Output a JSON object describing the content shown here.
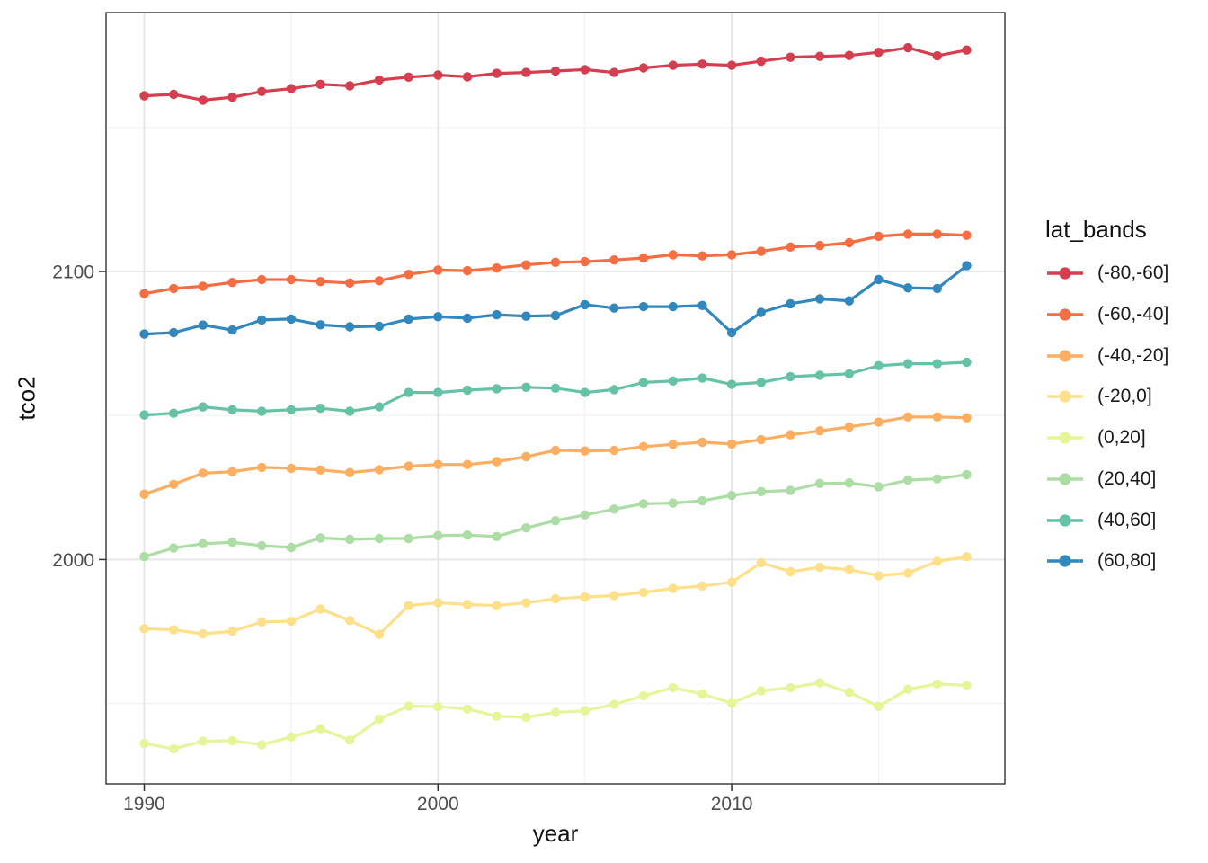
{
  "chart_data": {
    "type": "line",
    "title": "",
    "xlabel": "year",
    "ylabel": "tco2",
    "legend_title": "lat_bands",
    "legend_position": "right",
    "grid": true,
    "x": [
      1990,
      1991,
      1992,
      1993,
      1994,
      1995,
      1996,
      1997,
      1998,
      1999,
      2000,
      2001,
      2002,
      2003,
      2004,
      2005,
      2006,
      2007,
      2008,
      2009,
      2010,
      2011,
      2012,
      2013,
      2014,
      2015,
      2016,
      2017,
      2018
    ],
    "xlim": [
      1988.7,
      2019.3
    ],
    "ylim": [
      1922.1,
      2189.9
    ],
    "x_ticks": [
      1990,
      2000,
      2010
    ],
    "y_ticks": [
      2000,
      2100
    ],
    "x_minor_ticks": [
      1995,
      2005,
      2015
    ],
    "y_minor_ticks": [
      1950,
      2050,
      2150
    ],
    "series": [
      {
        "name": "(-80,-60]",
        "color": "#d53e4f",
        "values": [
          2161.0,
          2161.5,
          2159.5,
          2160.5,
          2162.5,
          2163.5,
          2165.0,
          2164.5,
          2166.5,
          2167.5,
          2168.2,
          2167.6,
          2168.8,
          2169.1,
          2169.6,
          2170.1,
          2169.1,
          2170.7,
          2171.6,
          2172.0,
          2171.6,
          2173.0,
          2174.4,
          2174.7,
          2175.0,
          2176.1,
          2177.7,
          2174.9,
          2176.9
        ]
      },
      {
        "name": "(-60,-40]",
        "color": "#f46d43",
        "values": [
          2092.3,
          2094.1,
          2094.9,
          2096.2,
          2097.2,
          2097.2,
          2096.5,
          2096.0,
          2096.8,
          2099.0,
          2100.5,
          2100.3,
          2101.2,
          2102.3,
          2103.2,
          2103.4,
          2104.0,
          2104.7,
          2105.8,
          2105.4,
          2105.8,
          2107.0,
          2108.5,
          2109.0,
          2110.0,
          2112.2,
          2113.0,
          2113.0,
          2112.6
        ]
      },
      {
        "name": "(-40,-20]",
        "color": "#fdae61",
        "values": [
          2022.7,
          2026.1,
          2030.0,
          2030.5,
          2032.0,
          2031.7,
          2031.1,
          2030.2,
          2031.2,
          2032.4,
          2033.0,
          2033.0,
          2034.0,
          2035.7,
          2037.9,
          2037.7,
          2037.9,
          2039.2,
          2040.0,
          2040.7,
          2040.1,
          2041.6,
          2043.3,
          2044.7,
          2046.0,
          2047.7,
          2049.5,
          2049.5,
          2049.2
        ]
      },
      {
        "name": "(-20,0]",
        "color": "#fee08b",
        "values": [
          1976.0,
          1975.6,
          1974.2,
          1975.1,
          1978.3,
          1978.6,
          1982.8,
          1978.8,
          1974.0,
          1984.0,
          1985.0,
          1984.4,
          1984.0,
          1985.0,
          1986.4,
          1987.0,
          1987.5,
          1988.6,
          1990.0,
          1990.8,
          1992.1,
          1998.9,
          1995.8,
          1997.3,
          1996.5,
          1994.4,
          1995.3,
          1999.4,
          2001.0
        ]
      },
      {
        "name": "(0,20]",
        "color": "#e6f598",
        "values": [
          1936.1,
          1934.3,
          1936.9,
          1937.1,
          1935.7,
          1938.4,
          1941.2,
          1937.3,
          1944.6,
          1949.1,
          1948.9,
          1948.1,
          1945.6,
          1945.2,
          1946.9,
          1947.5,
          1949.7,
          1952.7,
          1955.5,
          1953.3,
          1950.1,
          1954.4,
          1955.5,
          1957.2,
          1953.9,
          1949.0,
          1955.0,
          1956.8,
          1956.3
        ]
      },
      {
        "name": "(20,40]",
        "color": "#abdda4",
        "values": [
          2001.0,
          2004.0,
          2005.5,
          2006.0,
          2004.8,
          2004.2,
          2007.5,
          2007.0,
          2007.3,
          2007.3,
          2008.3,
          2008.5,
          2008.0,
          2011.0,
          2013.5,
          2015.5,
          2017.5,
          2019.4,
          2019.6,
          2020.4,
          2022.3,
          2023.6,
          2024.0,
          2026.4,
          2026.6,
          2025.3,
          2027.6,
          2028.0,
          2029.5
        ]
      },
      {
        "name": "(40,60]",
        "color": "#66c2a5",
        "values": [
          2050.2,
          2050.8,
          2053.0,
          2052.0,
          2051.5,
          2052.0,
          2052.5,
          2051.5,
          2053.0,
          2058.0,
          2058.0,
          2058.8,
          2059.3,
          2059.8,
          2059.5,
          2058.0,
          2059.0,
          2061.5,
          2062.0,
          2063.0,
          2060.8,
          2061.5,
          2063.5,
          2064.0,
          2064.5,
          2067.3,
          2068.0,
          2068.0,
          2068.5
        ]
      },
      {
        "name": "(60,80]",
        "color": "#3288bd",
        "values": [
          2078.3,
          2078.8,
          2081.4,
          2079.7,
          2083.2,
          2083.5,
          2081.5,
          2080.8,
          2081.0,
          2083.5,
          2084.3,
          2083.8,
          2085.0,
          2084.5,
          2084.7,
          2088.5,
          2087.3,
          2087.8,
          2087.8,
          2088.2,
          2078.8,
          2085.8,
          2088.8,
          2090.5,
          2089.8,
          2097.2,
          2094.3,
          2094.1,
          2102.0
        ]
      }
    ],
    "style": {
      "panel_border_color": "#333333",
      "grid_major_color": "#e6e6e6",
      "grid_minor_color": "#f2f2f2",
      "tick_color": "#333333",
      "tick_label_color": "#4d4d4d",
      "axis_title_color": "#111111",
      "background": "#ffffff"
    }
  }
}
